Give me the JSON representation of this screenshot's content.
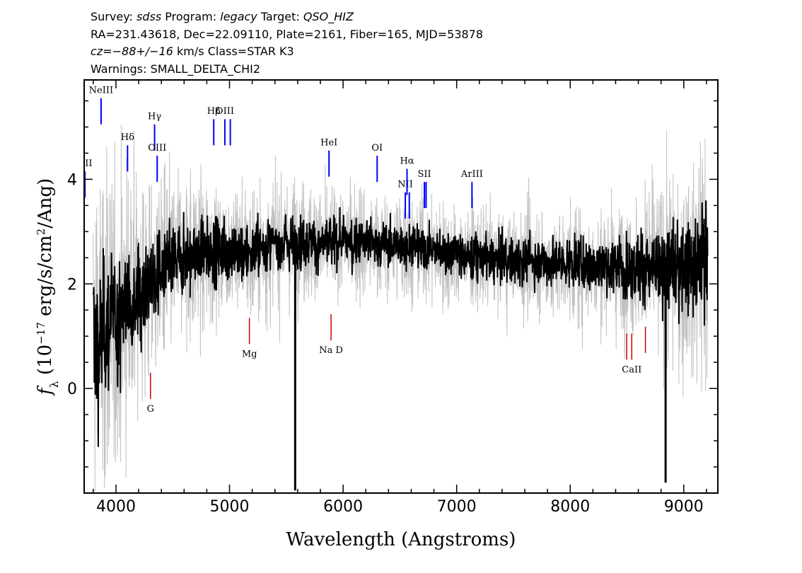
{
  "header": {
    "survey_label": "Survey:",
    "survey": "sdss",
    "program_label": "Program:",
    "program": "legacy",
    "target_label": "Target:",
    "target": "QSO_HIZ",
    "line2": "RA=231.43618, Dec=22.09110, Plate=2161, Fiber=165, MJD=53878",
    "cz": "cz=−88+/−16",
    "cz_rest": " km/s  Class=STAR K3",
    "warnings": "Warnings: SMALL_DELTA_CHI2"
  },
  "colors": {
    "flux": "#000000",
    "error": "#c0c0c0",
    "emission": "#0000ff",
    "absorption": "#cc0000"
  },
  "chart_data": {
    "type": "line",
    "title": "",
    "xlabel": "Wavelength (Angstroms)",
    "ylabel": "f_λ (10^-17 erg/s/cm^2/Ang)",
    "xlim": [
      3720,
      9300
    ],
    "ylim": [
      -2.0,
      5.9
    ],
    "x_ticks": [
      4000,
      5000,
      6000,
      7000,
      8000,
      9000
    ],
    "x_tick_labels": [
      "4000",
      "5000",
      "6000",
      "7000",
      "8000",
      "9000"
    ],
    "y_ticks": [
      0,
      2,
      4
    ],
    "y_tick_labels": [
      "0",
      "2",
      "4"
    ],
    "grid": false,
    "flux_trend": {
      "x": [
        3800,
        3850,
        3900,
        4000,
        4100,
        4200,
        4300,
        4400,
        4500,
        4600,
        4700,
        4800,
        4900,
        5000,
        5100,
        5200,
        5300,
        5400,
        5500,
        5600,
        5700,
        5800,
        5900,
        6000,
        6200,
        6400,
        6600,
        6800,
        7000,
        7200,
        7400,
        7600,
        7800,
        8000,
        8200,
        8400,
        8600,
        8800,
        9000,
        9100,
        9200
      ],
      "y": [
        1.0,
        0.8,
        1.2,
        1.3,
        1.7,
        1.8,
        2.0,
        2.2,
        2.4,
        2.5,
        2.55,
        2.6,
        2.65,
        2.65,
        2.6,
        2.6,
        2.7,
        2.75,
        2.8,
        2.8,
        2.8,
        2.75,
        2.8,
        2.8,
        2.8,
        2.75,
        2.7,
        2.65,
        2.55,
        2.5,
        2.45,
        2.45,
        2.4,
        2.4,
        2.35,
        2.35,
        2.3,
        2.3,
        2.3,
        2.3,
        2.6
      ]
    },
    "error_trend": {
      "x": [
        3800,
        3900,
        4000,
        4200,
        4500,
        5000,
        6000,
        7000,
        8000,
        8500,
        8900,
        9100,
        9200
      ],
      "y": [
        1.5,
        1.3,
        1.2,
        0.9,
        0.7,
        0.55,
        0.45,
        0.4,
        0.45,
        0.55,
        0.8,
        0.9,
        1.0
      ]
    },
    "spikes": [
      {
        "x": 5578,
        "y": -1.95
      },
      {
        "x": 8840,
        "y": -1.8
      }
    ],
    "emission_lines": [
      {
        "label": "OII",
        "x": 3727
      },
      {
        "label": "NeIII",
        "x": 3869
      },
      {
        "label": "Hδ",
        "x": 4102
      },
      {
        "label": "Hγ",
        "x": 4340
      },
      {
        "label": "OIII",
        "x": 4363
      },
      {
        "label": "Hβ",
        "x": 4861
      },
      {
        "label": "OIII",
        "x": 4959
      },
      {
        "label": "OIII",
        "x": 5007
      },
      {
        "label": "HeI",
        "x": 5876
      },
      {
        "label": "OI",
        "x": 6300
      },
      {
        "label": "NII",
        "x": 6548
      },
      {
        "label": "Hα",
        "x": 6563
      },
      {
        "label": "NII",
        "x": 6583
      },
      {
        "label": "SII",
        "x": 6716
      },
      {
        "label": "SII",
        "x": 6731
      },
      {
        "label": "ArIII",
        "x": 7135
      }
    ],
    "absorption_lines": [
      {
        "label": "G",
        "x": 4304
      },
      {
        "label": "Mg",
        "x": 5175
      },
      {
        "label": "Na D",
        "x": 5894
      },
      {
        "label": "CaII",
        "x": 8498
      },
      {
        "label": "CaII",
        "x": 8542
      },
      {
        "label": "CaII",
        "x": 8662
      }
    ]
  }
}
